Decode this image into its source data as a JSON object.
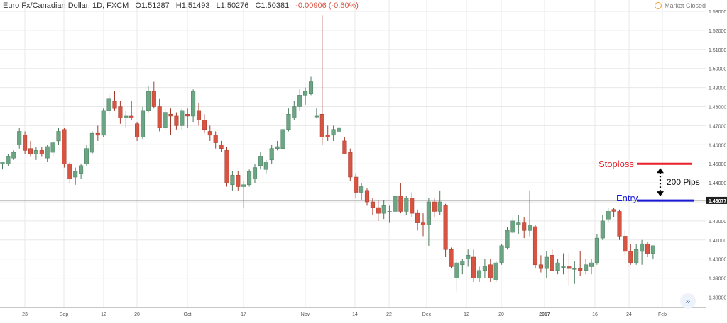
{
  "header": {
    "symbol": "Euro Fx/Canadian Dollar, 1D, FXCM",
    "open": "O1.51287",
    "high": "H1.51493",
    "low": "L1.50276",
    "close": "C1.50381",
    "change": "-0.00906 (-0.60%)",
    "market_status": "Market Closed"
  },
  "colors": {
    "up": "#6ba583",
    "down": "#d75442",
    "stop": "#e8202a",
    "entry": "#1a1ad6",
    "grid": "#e8e8e8"
  },
  "chart_data": {
    "type": "candlestick",
    "ylim": [
      1.375,
      1.535
    ],
    "y_ticks": [
      "1.53000",
      "1.52000",
      "1.51000",
      "1.50000",
      "1.49000",
      "1.48000",
      "1.47000",
      "1.46000",
      "1.45000",
      "1.44000",
      "1.43000",
      "1.42000",
      "1.41000",
      "1.40000",
      "1.39000",
      "1.38000"
    ],
    "x_ticks": [
      "23",
      "Sep",
      "12",
      "20",
      "Oct",
      "17",
      "Nov",
      "14",
      "22",
      "Dec",
      "12",
      "20",
      "2017",
      "16",
      "24",
      "Feb"
    ],
    "price_line": {
      "value": 1.43077,
      "label": "1.43077"
    },
    "annotations": {
      "stoploss": {
        "label": "Stoploss",
        "value": 1.45
      },
      "entry": {
        "label": "Entry",
        "value": 1.4307
      },
      "distance_label": "200 Pips"
    },
    "candles": [
      {
        "o": 1.45,
        "h": 1.451,
        "l": 1.447,
        "c": 1.451
      },
      {
        "o": 1.45,
        "h": 1.455,
        "l": 1.449,
        "c": 1.454
      },
      {
        "o": 1.453,
        "h": 1.457,
        "l": 1.452,
        "c": 1.456
      },
      {
        "o": 1.46,
        "h": 1.469,
        "l": 1.458,
        "c": 1.467
      },
      {
        "o": 1.465,
        "h": 1.467,
        "l": 1.455,
        "c": 1.457
      },
      {
        "o": 1.458,
        "h": 1.462,
        "l": 1.454,
        "c": 1.455
      },
      {
        "o": 1.455,
        "h": 1.459,
        "l": 1.452,
        "c": 1.457
      },
      {
        "o": 1.457,
        "h": 1.459,
        "l": 1.454,
        "c": 1.455
      },
      {
        "o": 1.453,
        "h": 1.46,
        "l": 1.451,
        "c": 1.459
      },
      {
        "o": 1.456,
        "h": 1.462,
        "l": 1.454,
        "c": 1.461
      },
      {
        "o": 1.462,
        "h": 1.469,
        "l": 1.46,
        "c": 1.467
      },
      {
        "o": 1.468,
        "h": 1.469,
        "l": 1.448,
        "c": 1.45
      },
      {
        "o": 1.45,
        "h": 1.451,
        "l": 1.44,
        "c": 1.442
      },
      {
        "o": 1.443,
        "h": 1.448,
        "l": 1.439,
        "c": 1.446
      },
      {
        "o": 1.445,
        "h": 1.45,
        "l": 1.442,
        "c": 1.449
      },
      {
        "o": 1.45,
        "h": 1.46,
        "l": 1.449,
        "c": 1.458
      },
      {
        "o": 1.456,
        "h": 1.467,
        "l": 1.455,
        "c": 1.466
      },
      {
        "o": 1.466,
        "h": 1.47,
        "l": 1.462,
        "c": 1.465
      },
      {
        "o": 1.465,
        "h": 1.479,
        "l": 1.464,
        "c": 1.478
      },
      {
        "o": 1.478,
        "h": 1.487,
        "l": 1.476,
        "c": 1.484
      },
      {
        "o": 1.483,
        "h": 1.488,
        "l": 1.478,
        "c": 1.479
      },
      {
        "o": 1.48,
        "h": 1.483,
        "l": 1.471,
        "c": 1.474
      },
      {
        "o": 1.474,
        "h": 1.478,
        "l": 1.469,
        "c": 1.475
      },
      {
        "o": 1.475,
        "h": 1.483,
        "l": 1.473,
        "c": 1.474
      },
      {
        "o": 1.471,
        "h": 1.472,
        "l": 1.462,
        "c": 1.464
      },
      {
        "o": 1.464,
        "h": 1.48,
        "l": 1.463,
        "c": 1.478
      },
      {
        "o": 1.478,
        "h": 1.491,
        "l": 1.477,
        "c": 1.488
      },
      {
        "o": 1.488,
        "h": 1.493,
        "l": 1.479,
        "c": 1.48
      },
      {
        "o": 1.48,
        "h": 1.484,
        "l": 1.467,
        "c": 1.469
      },
      {
        "o": 1.469,
        "h": 1.479,
        "l": 1.468,
        "c": 1.477
      },
      {
        "o": 1.476,
        "h": 1.479,
        "l": 1.465,
        "c": 1.475
      },
      {
        "o": 1.475,
        "h": 1.477,
        "l": 1.468,
        "c": 1.47
      },
      {
        "o": 1.47,
        "h": 1.479,
        "l": 1.468,
        "c": 1.478
      },
      {
        "o": 1.476,
        "h": 1.479,
        "l": 1.469,
        "c": 1.475
      },
      {
        "o": 1.475,
        "h": 1.489,
        "l": 1.472,
        "c": 1.488
      },
      {
        "o": 1.478,
        "h": 1.482,
        "l": 1.47,
        "c": 1.473
      },
      {
        "o": 1.473,
        "h": 1.476,
        "l": 1.466,
        "c": 1.468
      },
      {
        "o": 1.467,
        "h": 1.47,
        "l": 1.462,
        "c": 1.465
      },
      {
        "o": 1.465,
        "h": 1.467,
        "l": 1.458,
        "c": 1.461
      },
      {
        "o": 1.46,
        "h": 1.462,
        "l": 1.456,
        "c": 1.458
      },
      {
        "o": 1.457,
        "h": 1.459,
        "l": 1.438,
        "c": 1.44
      },
      {
        "o": 1.439,
        "h": 1.446,
        "l": 1.436,
        "c": 1.444
      },
      {
        "o": 1.444,
        "h": 1.446,
        "l": 1.436,
        "c": 1.438
      },
      {
        "o": 1.438,
        "h": 1.441,
        "l": 1.427,
        "c": 1.439
      },
      {
        "o": 1.439,
        "h": 1.447,
        "l": 1.438,
        "c": 1.446
      },
      {
        "o": 1.442,
        "h": 1.45,
        "l": 1.44,
        "c": 1.448
      },
      {
        "o": 1.449,
        "h": 1.456,
        "l": 1.447,
        "c": 1.454
      },
      {
        "o": 1.447,
        "h": 1.452,
        "l": 1.445,
        "c": 1.451
      },
      {
        "o": 1.452,
        "h": 1.46,
        "l": 1.45,
        "c": 1.458
      },
      {
        "o": 1.458,
        "h": 1.462,
        "l": 1.457,
        "c": 1.459
      },
      {
        "o": 1.458,
        "h": 1.471,
        "l": 1.457,
        "c": 1.468
      },
      {
        "o": 1.468,
        "h": 1.479,
        "l": 1.467,
        "c": 1.476
      },
      {
        "o": 1.474,
        "h": 1.483,
        "l": 1.473,
        "c": 1.48
      },
      {
        "o": 1.48,
        "h": 1.489,
        "l": 1.478,
        "c": 1.486
      },
      {
        "o": 1.486,
        "h": 1.49,
        "l": 1.481,
        "c": 1.488
      },
      {
        "o": 1.487,
        "h": 1.496,
        "l": 1.486,
        "c": 1.493
      },
      {
        "o": 1.475,
        "h": 1.479,
        "l": 1.474,
        "c": 1.475
      },
      {
        "o": 1.476,
        "h": 1.528,
        "l": 1.46,
        "c": 1.464
      },
      {
        "o": 1.465,
        "h": 1.47,
        "l": 1.462,
        "c": 1.464
      },
      {
        "o": 1.465,
        "h": 1.47,
        "l": 1.462,
        "c": 1.468
      },
      {
        "o": 1.467,
        "h": 1.471,
        "l": 1.463,
        "c": 1.469
      },
      {
        "o": 1.462,
        "h": 1.464,
        "l": 1.456,
        "c": 1.455
      },
      {
        "o": 1.456,
        "h": 1.458,
        "l": 1.441,
        "c": 1.443
      },
      {
        "o": 1.443,
        "h": 1.445,
        "l": 1.432,
        "c": 1.435
      },
      {
        "o": 1.435,
        "h": 1.44,
        "l": 1.431,
        "c": 1.438
      },
      {
        "o": 1.436,
        "h": 1.437,
        "l": 1.428,
        "c": 1.43
      },
      {
        "o": 1.43,
        "h": 1.432,
        "l": 1.423,
        "c": 1.427
      },
      {
        "o": 1.427,
        "h": 1.431,
        "l": 1.42,
        "c": 1.424
      },
      {
        "o": 1.424,
        "h": 1.431,
        "l": 1.421,
        "c": 1.428
      },
      {
        "o": 1.425,
        "h": 1.428,
        "l": 1.419,
        "c": 1.425
      },
      {
        "o": 1.425,
        "h": 1.438,
        "l": 1.421,
        "c": 1.433
      },
      {
        "o": 1.433,
        "h": 1.44,
        "l": 1.424,
        "c": 1.425
      },
      {
        "o": 1.425,
        "h": 1.433,
        "l": 1.423,
        "c": 1.432
      },
      {
        "o": 1.432,
        "h": 1.435,
        "l": 1.422,
        "c": 1.424
      },
      {
        "o": 1.424,
        "h": 1.426,
        "l": 1.415,
        "c": 1.419
      },
      {
        "o": 1.419,
        "h": 1.424,
        "l": 1.412,
        "c": 1.418
      },
      {
        "o": 1.418,
        "h": 1.432,
        "l": 1.407,
        "c": 1.43
      },
      {
        "o": 1.43,
        "h": 1.432,
        "l": 1.422,
        "c": 1.425
      },
      {
        "o": 1.425,
        "h": 1.436,
        "l": 1.423,
        "c": 1.43
      },
      {
        "o": 1.428,
        "h": 1.429,
        "l": 1.401,
        "c": 1.405
      },
      {
        "o": 1.405,
        "h": 1.406,
        "l": 1.395,
        "c": 1.396
      },
      {
        "o": 1.39,
        "h": 1.4,
        "l": 1.383,
        "c": 1.398
      },
      {
        "o": 1.397,
        "h": 1.4,
        "l": 1.392,
        "c": 1.399
      },
      {
        "o": 1.4,
        "h": 1.405,
        "l": 1.396,
        "c": 1.402
      },
      {
        "o": 1.401,
        "h": 1.405,
        "l": 1.388,
        "c": 1.39
      },
      {
        "o": 1.39,
        "h": 1.396,
        "l": 1.388,
        "c": 1.394
      },
      {
        "o": 1.394,
        "h": 1.4,
        "l": 1.39,
        "c": 1.396
      },
      {
        "o": 1.397,
        "h": 1.4,
        "l": 1.388,
        "c": 1.39
      },
      {
        "o": 1.389,
        "h": 1.399,
        "l": 1.388,
        "c": 1.398
      },
      {
        "o": 1.398,
        "h": 1.408,
        "l": 1.397,
        "c": 1.407
      },
      {
        "o": 1.406,
        "h": 1.417,
        "l": 1.405,
        "c": 1.415
      },
      {
        "o": 1.414,
        "h": 1.422,
        "l": 1.413,
        "c": 1.42
      },
      {
        "o": 1.418,
        "h": 1.423,
        "l": 1.413,
        "c": 1.419
      },
      {
        "o": 1.419,
        "h": 1.422,
        "l": 1.411,
        "c": 1.415
      },
      {
        "o": 1.415,
        "h": 1.436,
        "l": 1.412,
        "c": 1.418
      },
      {
        "o": 1.417,
        "h": 1.418,
        "l": 1.395,
        "c": 1.397
      },
      {
        "o": 1.397,
        "h": 1.402,
        "l": 1.393,
        "c": 1.395
      },
      {
        "o": 1.395,
        "h": 1.404,
        "l": 1.39,
        "c": 1.401
      },
      {
        "o": 1.402,
        "h": 1.405,
        "l": 1.394,
        "c": 1.394
      },
      {
        "o": 1.394,
        "h": 1.4,
        "l": 1.392,
        "c": 1.398
      },
      {
        "o": 1.396,
        "h": 1.403,
        "l": 1.392,
        "c": 1.396
      },
      {
        "o": 1.396,
        "h": 1.403,
        "l": 1.386,
        "c": 1.395
      },
      {
        "o": 1.395,
        "h": 1.399,
        "l": 1.387,
        "c": 1.395
      },
      {
        "o": 1.395,
        "h": 1.404,
        "l": 1.391,
        "c": 1.394
      },
      {
        "o": 1.394,
        "h": 1.4,
        "l": 1.392,
        "c": 1.397
      },
      {
        "o": 1.396,
        "h": 1.4,
        "l": 1.392,
        "c": 1.398
      },
      {
        "o": 1.398,
        "h": 1.413,
        "l": 1.397,
        "c": 1.411
      },
      {
        "o": 1.411,
        "h": 1.423,
        "l": 1.41,
        "c": 1.42
      },
      {
        "o": 1.421,
        "h": 1.427,
        "l": 1.419,
        "c": 1.425
      },
      {
        "o": 1.426,
        "h": 1.427,
        "l": 1.422,
        "c": 1.425
      },
      {
        "o": 1.425,
        "h": 1.426,
        "l": 1.41,
        "c": 1.412
      },
      {
        "o": 1.412,
        "h": 1.415,
        "l": 1.402,
        "c": 1.404
      },
      {
        "o": 1.404,
        "h": 1.408,
        "l": 1.397,
        "c": 1.398
      },
      {
        "o": 1.398,
        "h": 1.408,
        "l": 1.397,
        "c": 1.405
      },
      {
        "o": 1.404,
        "h": 1.41,
        "l": 1.397,
        "c": 1.408
      },
      {
        "o": 1.408,
        "h": 1.409,
        "l": 1.401,
        "c": 1.403
      },
      {
        "o": 1.403,
        "h": 1.407,
        "l": 1.4,
        "c": 1.407
      }
    ]
  }
}
